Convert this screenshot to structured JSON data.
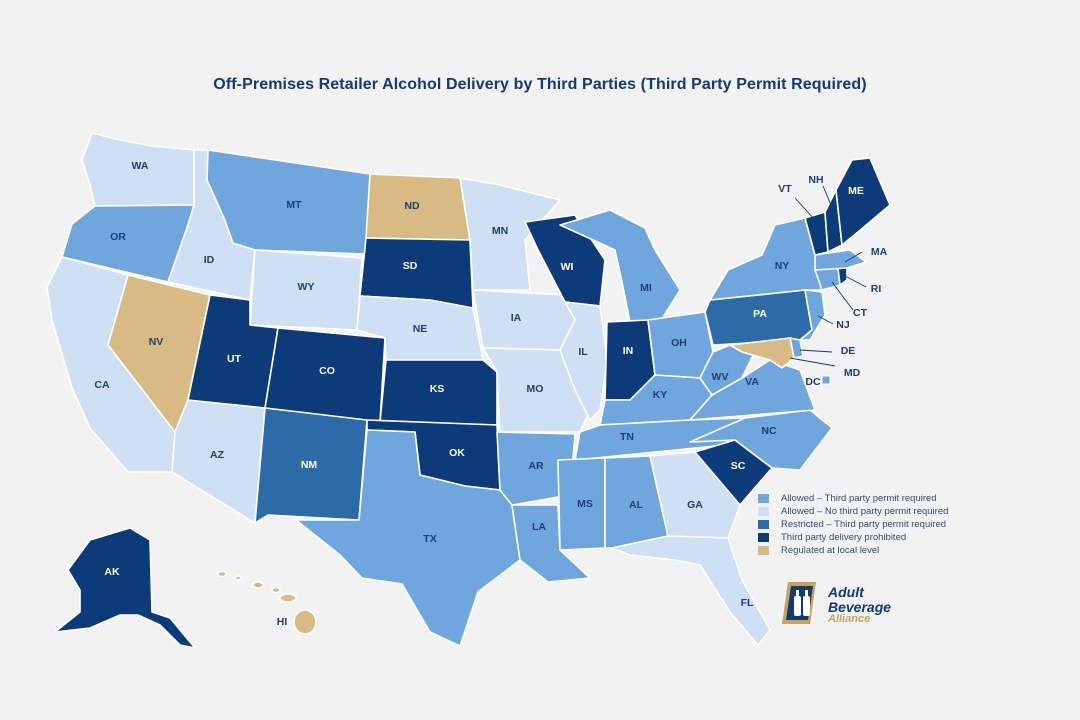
{
  "title": "Off-Premises Retailer Alcohol Delivery by Third Parties (Third Party Permit Required)",
  "colors": {
    "allowed_permit": "#6fa6de",
    "allowed_no_permit": "#cfdff4",
    "restricted": "#2c6ba8",
    "prohibited": "#0d3b7a",
    "local": "#d8bb82"
  },
  "legend": [
    {
      "key": "allowed_permit",
      "label": "Allowed – Third party permit required"
    },
    {
      "key": "allowed_no_permit",
      "label": "Allowed – No third party permit required"
    },
    {
      "key": "restricted",
      "label": "Restricted – Third party permit required"
    },
    {
      "key": "prohibited",
      "label": "Third party delivery prohibited"
    },
    {
      "key": "local",
      "label": "Regulated at local level"
    }
  ],
  "states": {
    "WA": "allowed_no_permit",
    "OR": "allowed_permit",
    "CA": "allowed_no_permit",
    "ID": "allowed_no_permit",
    "NV": "local",
    "AZ": "allowed_no_permit",
    "MT": "allowed_permit",
    "WY": "allowed_no_permit",
    "UT": "prohibited",
    "CO": "prohibited",
    "NM": "restricted",
    "ND": "local",
    "SD": "prohibited",
    "NE": "allowed_no_permit",
    "KS": "prohibited",
    "OK": "prohibited",
    "TX": "allowed_permit",
    "MN": "allowed_no_permit",
    "IA": "allowed_no_permit",
    "MO": "allowed_no_permit",
    "AR": "allowed_permit",
    "LA": "allowed_permit",
    "WI": "prohibited",
    "IL": "allowed_no_permit",
    "MI": "allowed_permit",
    "IN": "prohibited",
    "OH": "allowed_permit",
    "KY": "allowed_permit",
    "TN": "allowed_permit",
    "MS": "allowed_permit",
    "AL": "allowed_permit",
    "GA": "allowed_no_permit",
    "FL": "allowed_no_permit",
    "SC": "prohibited",
    "NC": "allowed_permit",
    "VA": "allowed_permit",
    "WV": "allowed_permit",
    "PA": "restricted",
    "NY": "allowed_permit",
    "NJ": "allowed_permit",
    "DE": "allowed_permit",
    "MD": "local",
    "DC": "allowed_permit",
    "CT": "allowed_permit",
    "RI": "prohibited",
    "MA": "allowed_permit",
    "VT": "prohibited",
    "NH": "prohibited",
    "ME": "prohibited",
    "AK": "prohibited",
    "HI": "local"
  },
  "logo": {
    "line1": "Adult",
    "line2": "Beverage",
    "line3": "Alliance"
  }
}
